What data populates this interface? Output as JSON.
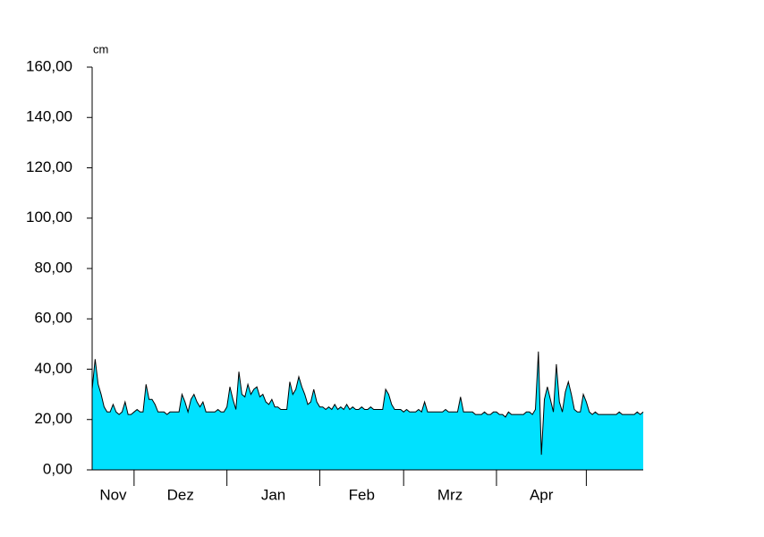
{
  "chart_data": {
    "type": "area",
    "y_unit": "cm",
    "color": "#00e1ff",
    "line_color": "#000000",
    "x": [
      0,
      1,
      2,
      3,
      4,
      5,
      6,
      7,
      8,
      9,
      10,
      11,
      12,
      13,
      14,
      15,
      16,
      17,
      18,
      19,
      20,
      21,
      22,
      23,
      24,
      25,
      26,
      27,
      28,
      29,
      30,
      31,
      32,
      33,
      34,
      35,
      36,
      37,
      38,
      39,
      40,
      41,
      42,
      43,
      44,
      45,
      46,
      47,
      48,
      49,
      50,
      51,
      52,
      53,
      54,
      55,
      56,
      57,
      58,
      59,
      60,
      61,
      62,
      63,
      64,
      65,
      66,
      67,
      68,
      69,
      70,
      71,
      72,
      73,
      74,
      75,
      76,
      77,
      78,
      79,
      80,
      81,
      82,
      83,
      84,
      85,
      86,
      87,
      88,
      89,
      90,
      91,
      92,
      93,
      94,
      95,
      96,
      97,
      98,
      99,
      100,
      101,
      102,
      103,
      104,
      105,
      106,
      107,
      108,
      109,
      110,
      111,
      112,
      113,
      114,
      115,
      116,
      117,
      118,
      119,
      120,
      121,
      122,
      123,
      124,
      125,
      126,
      127,
      128,
      129,
      130,
      131,
      132,
      133,
      134,
      135,
      136,
      137,
      138,
      139,
      140,
      141,
      142,
      143,
      144,
      145,
      146,
      147,
      148,
      149,
      150,
      151,
      152,
      153,
      154,
      155,
      156,
      157,
      158,
      159,
      160,
      161,
      162,
      163,
      164,
      165,
      166,
      167,
      168,
      169,
      170,
      171,
      172,
      173,
      174,
      175,
      176,
      177,
      178,
      179,
      180,
      181,
      182,
      183,
      184
    ],
    "values": [
      32,
      44,
      34,
      30,
      25,
      23,
      23,
      26,
      23,
      22,
      23,
      27,
      22,
      22,
      23,
      24,
      23,
      23,
      34,
      28,
      28,
      26,
      23,
      23,
      23,
      22,
      23,
      23,
      23,
      23,
      30,
      27,
      23,
      28,
      30,
      27,
      25,
      27,
      23,
      23,
      23,
      23,
      24,
      23,
      23,
      25,
      33,
      28,
      24,
      39,
      30,
      29,
      34,
      30,
      32,
      33,
      29,
      30,
      27,
      26,
      28,
      25,
      25,
      24,
      24,
      24,
      35,
      30,
      32,
      37,
      33,
      30,
      26,
      27,
      32,
      27,
      25,
      25,
      24,
      25,
      24,
      26,
      24,
      25,
      24,
      26,
      24,
      25,
      24,
      24,
      25,
      24,
      24,
      25,
      24,
      24,
      24,
      24,
      32,
      30,
      26,
      24,
      24,
      24,
      23,
      24,
      23,
      23,
      23,
      24,
      23,
      27,
      23,
      23,
      23,
      23,
      23,
      23,
      24,
      23,
      23,
      23,
      23,
      29,
      23,
      23,
      23,
      23,
      22,
      22,
      22,
      23,
      22,
      22,
      23,
      23,
      22,
      22,
      21,
      23,
      22,
      22,
      22,
      22,
      22,
      23,
      23,
      22,
      24,
      47,
      6,
      28,
      33,
      28,
      23,
      42,
      27,
      23,
      31,
      35,
      30,
      24,
      23,
      23,
      30,
      27,
      23,
      22,
      23,
      22,
      22,
      22,
      22,
      22,
      22,
      22,
      23,
      22,
      22,
      22,
      22,
      22,
      23,
      22,
      23
    ],
    "xlim": [
      0,
      184
    ],
    "xticks": [
      14,
      45,
      76,
      104,
      135,
      165
    ],
    "categories": [
      "Nov",
      "Dez",
      "Jan",
      "Feb",
      "Mrz",
      "Apr"
    ],
    "ylim": [
      0,
      160
    ],
    "yticks": [
      {
        "value": 0,
        "label": "0,00"
      },
      {
        "value": 20,
        "label": "20,00"
      },
      {
        "value": 40,
        "label": "40,00"
      },
      {
        "value": 60,
        "label": "60,00"
      },
      {
        "value": 80,
        "label": "80,00"
      },
      {
        "value": 100,
        "label": "100,00"
      },
      {
        "value": 120,
        "label": "120,00"
      },
      {
        "value": 140,
        "label": "140,00"
      },
      {
        "value": 160,
        "label": "160,00"
      }
    ]
  }
}
